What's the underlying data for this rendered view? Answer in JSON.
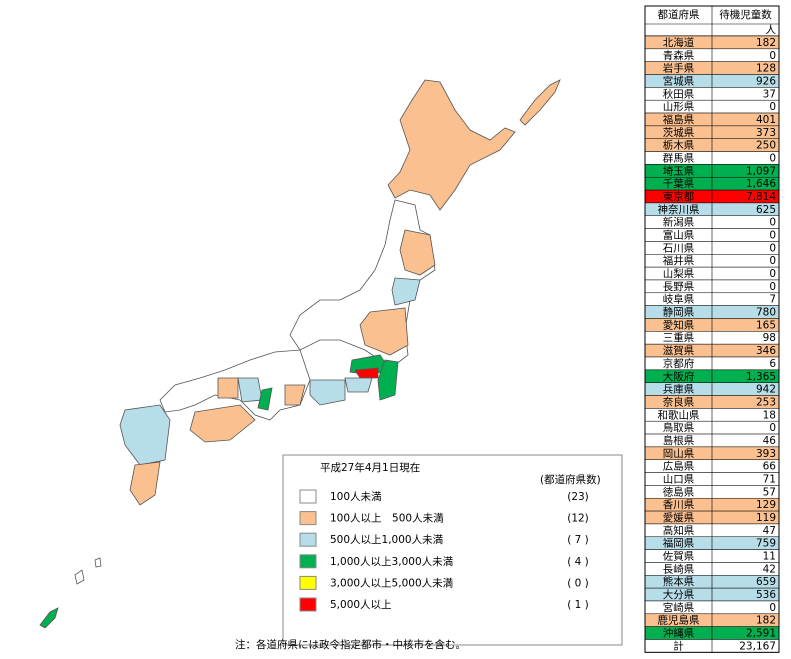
{
  "table": {
    "header": [
      "都道府県",
      "待機児童数"
    ],
    "unit": "人",
    "rows": [
      {
        "name": "北海道",
        "value": "182",
        "color": "#fac090"
      },
      {
        "name": "青森県",
        "value": "0",
        "color": "#ffffff"
      },
      {
        "name": "岩手県",
        "value": "128",
        "color": "#fac090"
      },
      {
        "name": "宮城県",
        "value": "926",
        "color": "#b7dde8"
      },
      {
        "name": "秋田県",
        "value": "37",
        "color": "#ffffff"
      },
      {
        "name": "山形県",
        "value": "0",
        "color": "#ffffff"
      },
      {
        "name": "福島県",
        "value": "401",
        "color": "#fac090"
      },
      {
        "name": "茨城県",
        "value": "373",
        "color": "#fac090"
      },
      {
        "name": "栃木県",
        "value": "250",
        "color": "#fac090"
      },
      {
        "name": "群馬県",
        "value": "0",
        "color": "#ffffff"
      },
      {
        "name": "埼玉県",
        "value": "1,097",
        "color": "#00b050"
      },
      {
        "name": "千葉県",
        "value": "1,646",
        "color": "#00b050"
      },
      {
        "name": "東京都",
        "value": "7,814",
        "color": "#ff0000"
      },
      {
        "name": "神奈川県",
        "value": "625",
        "color": "#b7dde8"
      },
      {
        "name": "新潟県",
        "value": "0",
        "color": "#ffffff"
      },
      {
        "name": "富山県",
        "value": "0",
        "color": "#ffffff"
      },
      {
        "name": "石川県",
        "value": "0",
        "color": "#ffffff"
      },
      {
        "name": "福井県",
        "value": "0",
        "color": "#ffffff"
      },
      {
        "name": "山梨県",
        "value": "0",
        "color": "#ffffff"
      },
      {
        "name": "長野県",
        "value": "0",
        "color": "#ffffff"
      },
      {
        "name": "岐阜県",
        "value": "7",
        "color": "#ffffff"
      },
      {
        "name": "静岡県",
        "value": "780",
        "color": "#b7dde8"
      },
      {
        "name": "愛知県",
        "value": "165",
        "color": "#fac090"
      },
      {
        "name": "三重県",
        "value": "98",
        "color": "#ffffff"
      },
      {
        "name": "滋賀県",
        "value": "346",
        "color": "#fac090"
      },
      {
        "name": "京都府",
        "value": "6",
        "color": "#ffffff"
      },
      {
        "name": "大阪府",
        "value": "1,365",
        "color": "#00b050"
      },
      {
        "name": "兵庫県",
        "value": "942",
        "color": "#b7dde8"
      },
      {
        "name": "奈良県",
        "value": "253",
        "color": "#fac090"
      },
      {
        "name": "和歌山県",
        "value": "18",
        "color": "#ffffff"
      },
      {
        "name": "鳥取県",
        "value": "0",
        "color": "#ffffff"
      },
      {
        "name": "島根県",
        "value": "46",
        "color": "#ffffff"
      },
      {
        "name": "岡山県",
        "value": "393",
        "color": "#fac090"
      },
      {
        "name": "広島県",
        "value": "66",
        "color": "#ffffff"
      },
      {
        "name": "山口県",
        "value": "71",
        "color": "#ffffff"
      },
      {
        "name": "徳島県",
        "value": "57",
        "color": "#ffffff"
      },
      {
        "name": "香川県",
        "value": "129",
        "color": "#fac090"
      },
      {
        "name": "愛媛県",
        "value": "119",
        "color": "#fac090"
      },
      {
        "name": "高知県",
        "value": "47",
        "color": "#ffffff"
      },
      {
        "name": "福岡県",
        "value": "759",
        "color": "#b7dde8"
      },
      {
        "name": "佐賀県",
        "value": "11",
        "color": "#ffffff"
      },
      {
        "name": "長崎県",
        "value": "42",
        "color": "#ffffff"
      },
      {
        "name": "熊本県",
        "value": "659",
        "color": "#b7dde8"
      },
      {
        "name": "大分県",
        "value": "536",
        "color": "#b7dde8"
      },
      {
        "name": "宮崎県",
        "value": "0",
        "color": "#ffffff"
      },
      {
        "name": "鹿児島県",
        "value": "182",
        "color": "#fac090"
      },
      {
        "name": "沖縄県",
        "value": "2,591",
        "color": "#00b050"
      }
    ],
    "total": {
      "name": "計",
      "value": "23,167"
    }
  },
  "legend": {
    "title": "平成27年4月1日現在",
    "count_heading": "(都道府県数)",
    "items": [
      {
        "label": "100人未満",
        "color": "#ffffff",
        "count": "(23)"
      },
      {
        "label": "100人以上　500人未満",
        "color": "#fac090",
        "count": "(12)"
      },
      {
        "label": "500人以上1,000人未満",
        "color": "#b7dde8",
        "count": "( 7 )"
      },
      {
        "label": "1,000人以上3,000人未満",
        "color": "#00b050",
        "count": "( 4 )"
      },
      {
        "label": "3,000人以上5,000人未満",
        "color": "#ffff00",
        "count": "( 0 )"
      },
      {
        "label": "5,000人以上",
        "color": "#ff0000",
        "count": "( 1 )"
      }
    ]
  },
  "note": "注：各道府県には政令指定都市・中核市を含む。"
}
